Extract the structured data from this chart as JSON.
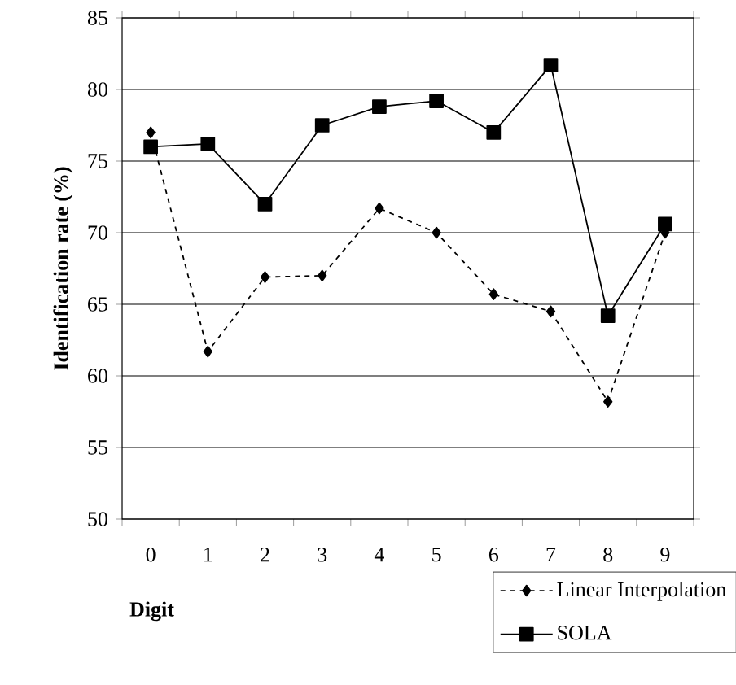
{
  "chart_data": {
    "type": "line",
    "xlabel": "Digit",
    "ylabel": "Identification rate (%)",
    "categories": [
      "0",
      "1",
      "2",
      "3",
      "4",
      "5",
      "6",
      "7",
      "8",
      "9"
    ],
    "series": [
      {
        "name": "Linear Interpolation",
        "color": "#000000",
        "marker": "diamond",
        "line_style": "dashed",
        "values": [
          77.0,
          61.7,
          66.9,
          67.0,
          71.7,
          70.0,
          65.7,
          64.5,
          58.2,
          70.0
        ]
      },
      {
        "name": "SOLA",
        "color": "#000000",
        "marker": "square",
        "line_style": "solid",
        "values": [
          76.0,
          76.2,
          72.0,
          77.5,
          78.8,
          79.2,
          77.0,
          81.7,
          64.2,
          70.6
        ]
      }
    ],
    "ylim": [
      50,
      85
    ],
    "yticks": [
      50,
      55,
      60,
      65,
      70,
      75,
      80,
      85
    ],
    "grid": "y",
    "legend": "bottom right"
  }
}
